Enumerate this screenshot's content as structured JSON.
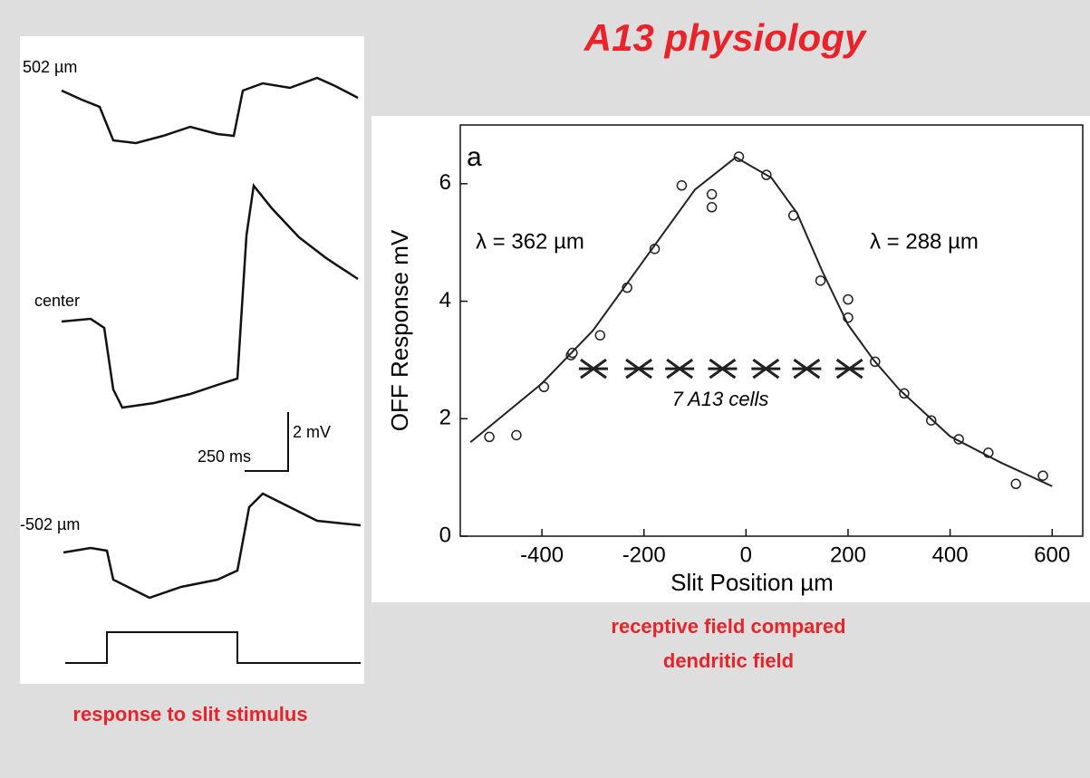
{
  "title": "A13 physiology",
  "left_panel": {
    "labels": [
      "502 µm",
      "center",
      "-502 µm"
    ],
    "scale_y": "2 mV",
    "scale_x": "250 ms",
    "caption": "response to slit stimulus"
  },
  "right_caption": [
    "receptive field compared",
    "dendritic field"
  ],
  "chart_data": {
    "type": "scatter",
    "panel_label": "a",
    "xlabel": "Slit Position µm",
    "ylabel": "OFF Response mV",
    "xlim": [
      -560,
      660
    ],
    "ylim": [
      0,
      7
    ],
    "xticks": [
      -400,
      -200,
      0,
      200,
      400,
      600
    ],
    "yticks": [
      0,
      2,
      4,
      6
    ],
    "annotations": [
      "λ = 362 µm",
      "λ = 288 µm",
      "7 A13 cells"
    ],
    "color": "#222222",
    "series": [
      {
        "marker": "circle",
        "x": [
          -503,
          -450,
          -396,
          -343,
          -340,
          -286,
          -233,
          -179,
          -126,
          -67,
          -67,
          -14,
          40,
          93,
          146,
          200,
          200,
          253,
          310,
          363,
          417,
          475,
          529,
          582
        ],
        "values": [
          1.69,
          1.72,
          2.54,
          3.08,
          3.12,
          3.42,
          4.23,
          4.89,
          5.97,
          5.82,
          5.6,
          6.46,
          6.15,
          5.46,
          4.35,
          4.03,
          3.72,
          2.97,
          2.43,
          1.97,
          1.65,
          1.42,
          0.89,
          1.03
        ]
      },
      {
        "marker": "line",
        "x": [
          -540,
          -400,
          -300,
          -200,
          -100,
          -20,
          50,
          100,
          150,
          200,
          250,
          300,
          400,
          500,
          600
        ],
        "values": [
          1.6,
          2.6,
          3.5,
          4.7,
          5.9,
          6.45,
          6.1,
          5.5,
          4.5,
          3.6,
          3.0,
          2.5,
          1.7,
          1.25,
          0.85
        ]
      },
      {
        "marker": "star",
        "x": [
          -299,
          -210,
          -130,
          -46,
          39,
          119,
          203
        ],
        "values": [
          2.85,
          2.85,
          2.85,
          2.85,
          2.85,
          2.85,
          2.85
        ]
      }
    ]
  }
}
